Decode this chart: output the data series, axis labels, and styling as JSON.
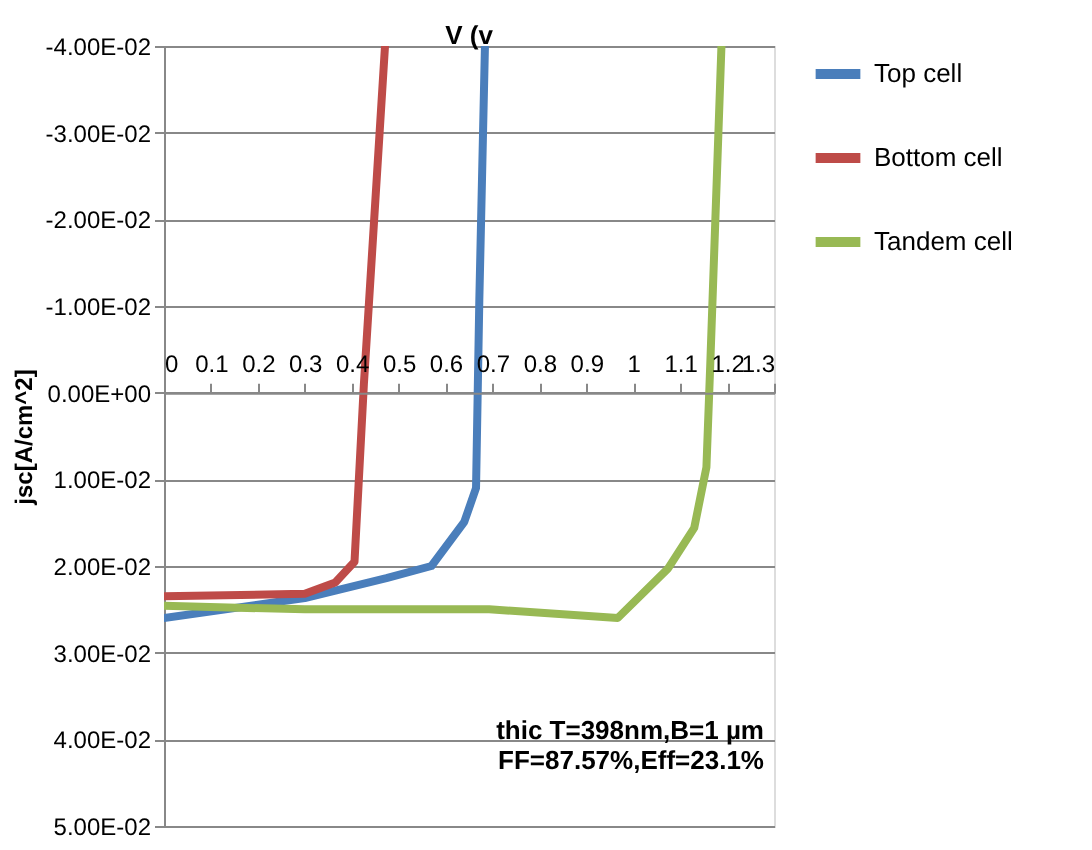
{
  "chart_data": {
    "type": "line",
    "xlabel": "V (v",
    "ylabel": "jsc[A/cm^2]",
    "xlim": [
      0,
      1.3
    ],
    "xticks": [
      0,
      0.1,
      0.2,
      0.3,
      0.4,
      0.5,
      0.6,
      0.7,
      0.8,
      0.9,
      1,
      1.1,
      1.2,
      1.3
    ],
    "ylim": [
      0.05,
      -0.04
    ],
    "yticks": [
      {
        "value": -0.04,
        "label": "-4.00E-02"
      },
      {
        "value": -0.03,
        "label": "-3.00E-02"
      },
      {
        "value": -0.02,
        "label": "-2.00E-02"
      },
      {
        "value": -0.01,
        "label": "-1.00E-02"
      },
      {
        "value": 0,
        "label": "0.00E+00"
      },
      {
        "value": 0.01,
        "label": "1.00E-02"
      },
      {
        "value": 0.02,
        "label": "2.00E-02"
      },
      {
        "value": 0.03,
        "label": "3.00E-02"
      },
      {
        "value": 0.04,
        "label": "4.00E-02"
      },
      {
        "value": 0.05,
        "label": "5.00E-02"
      }
    ],
    "grid": "y",
    "legend": "top right",
    "marker": "none",
    "line_style": "solid",
    "series": [
      {
        "name": "Top cell",
        "color": "#4a7ebb",
        "x": [
          0,
          0.3,
          0.474,
          0.57,
          0.64,
          0.665,
          0.672,
          0.684
        ],
        "values": [
          0.026,
          0.0237,
          0.0214,
          0.02,
          0.0149,
          0.011,
          -0.0107,
          -0.04
        ]
      },
      {
        "name": "Bottom cell",
        "color": "#be4b48",
        "x": [
          0,
          0.3,
          0.365,
          0.406,
          0.426,
          0.471
        ],
        "values": [
          0.0235,
          0.0232,
          0.0219,
          0.0195,
          -0.001,
          -0.04
        ]
      },
      {
        "name": "Tandem cell",
        "color": "#98b954",
        "x": [
          0,
          0.3,
          0.693,
          0.967,
          1.074,
          1.13,
          1.156,
          1.164,
          1.188
        ],
        "values": [
          0.0246,
          0.025,
          0.025,
          0.026,
          0.0203,
          0.0156,
          0.0086,
          -0.003,
          -0.04
        ]
      }
    ],
    "annotations": [
      "thic T=398nm,B=1 µm",
      "FF=87.57%,Eff=23.1%"
    ]
  }
}
